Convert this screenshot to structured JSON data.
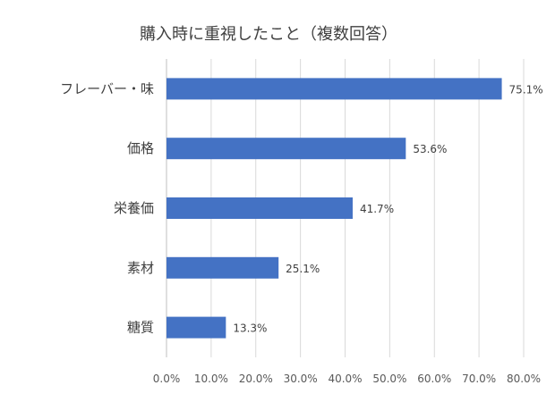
{
  "chart_data": {
    "type": "bar",
    "orientation": "horizontal",
    "title": "購入時に重視したこと（複数回答）",
    "categories": [
      "フレーバー・味",
      "価格",
      "栄養価",
      "素材",
      "糖質"
    ],
    "values": [
      75.1,
      53.6,
      41.7,
      25.1,
      13.3
    ],
    "data_labels": [
      "75.1%",
      "53.6%",
      "41.7%",
      "25.1%",
      "13.3%"
    ],
    "xlim": [
      0,
      80
    ],
    "xticks": [
      0,
      10,
      20,
      30,
      40,
      50,
      60,
      70,
      80
    ],
    "xtick_labels": [
      "0.0%",
      "10.0%",
      "20.0%",
      "30.0%",
      "40.0%",
      "50.0%",
      "60.0%",
      "70.0%",
      "80.0%"
    ],
    "grid": true,
    "xlabel": "",
    "ylabel": "",
    "bar_color": "#4472C4"
  }
}
